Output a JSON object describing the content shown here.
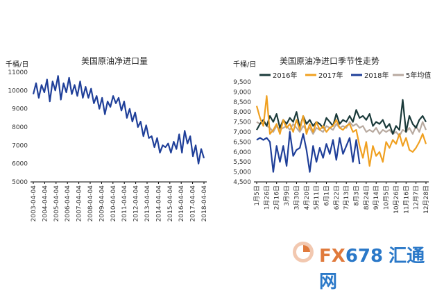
{
  "watermark": {
    "fx": "FX",
    "num": "678",
    "cn": "汇通网"
  },
  "chart_data": [
    {
      "type": "line",
      "title": "美国原油净进口量",
      "unit": "千桶/日",
      "ylim": [
        5000,
        11000
      ],
      "yticks": [
        5000,
        6000,
        7000,
        8000,
        9000,
        10000,
        11000
      ],
      "x_tick_labels": [
        "2003-04-04",
        "2004-04-04",
        "2005-04-04",
        "2006-04-04",
        "2007-04-04",
        "2008-04-04",
        "2009-04-04",
        "2010-04-04",
        "2011-04-04",
        "2012-04-04",
        "2013-04-04",
        "2014-04-04",
        "2015-04-04",
        "2016-04-04",
        "2017-04-04",
        "2018-04-04"
      ],
      "series": [
        {
          "color": "#1f3f99",
          "x_years": [
            2003.0,
            2003.25,
            2003.5,
            2003.75,
            2004.0,
            2004.25,
            2004.5,
            2004.75,
            2005.0,
            2005.25,
            2005.5,
            2005.75,
            2006.0,
            2006.25,
            2006.5,
            2006.75,
            2007.0,
            2007.25,
            2007.5,
            2007.75,
            2008.0,
            2008.25,
            2008.5,
            2008.75,
            2009.0,
            2009.25,
            2009.5,
            2009.75,
            2010.0,
            2010.25,
            2010.5,
            2010.75,
            2011.0,
            2011.25,
            2011.5,
            2011.75,
            2012.0,
            2012.25,
            2012.5,
            2012.75,
            2013.0,
            2013.25,
            2013.5,
            2013.75,
            2014.0,
            2014.25,
            2014.5,
            2014.75,
            2015.0,
            2015.25,
            2015.5,
            2015.75,
            2016.0,
            2016.25,
            2016.5,
            2016.75,
            2017.0,
            2017.25,
            2017.5,
            2017.75,
            2018.0,
            2018.25,
            2018.5
          ],
          "values": [
            9800,
            10400,
            9600,
            10300,
            9900,
            10600,
            9400,
            10500,
            10000,
            10800,
            9500,
            10400,
            9900,
            10700,
            9800,
            10300,
            9700,
            10500,
            9600,
            10200,
            9600,
            10100,
            9300,
            9700,
            9000,
            9600,
            8700,
            9400,
            9100,
            9700,
            9300,
            9600,
            8900,
            9400,
            8500,
            9000,
            8300,
            8800,
            8000,
            8300,
            7500,
            8100,
            7400,
            7500,
            6900,
            7400,
            6600,
            7000,
            6900,
            7100,
            6600,
            7200,
            6800,
            7600,
            6600,
            7800,
            7100,
            7500,
            6400,
            7000,
            6000,
            6800,
            6300
          ]
        }
      ]
    },
    {
      "type": "line",
      "title": "美国原油净进口季节性走势",
      "unit": "千桶/日",
      "ylim": [
        4500,
        9500
      ],
      "yticks": [
        4500,
        5000,
        5500,
        6000,
        6500,
        7000,
        7500,
        8000,
        8500,
        9000,
        9500
      ],
      "ytick_labels": [
        "4,500",
        "5,000",
        "5,500",
        "6,000",
        "6,500",
        "7,000",
        "7,500",
        "8,000",
        "8,500",
        "9,000",
        "9,500"
      ],
      "x_tick_labels": [
        "1月5日",
        "1月26日",
        "2月16日",
        "3月9日",
        "3月30日",
        "4月20日",
        "5月11日",
        "6月1日",
        "6月22日",
        "7月13日",
        "8月3日",
        "8月24日",
        "9月14日",
        "10月5日",
        "10月26日",
        "11月16日",
        "12月7日",
        "12月28日"
      ],
      "series": [
        {
          "name": "2016年",
          "color": "#1a3a3a",
          "values": [
            7100,
            7400,
            7600,
            7300,
            7800,
            7500,
            7900,
            7200,
            7600,
            7400,
            7700,
            7500,
            8000,
            7200,
            7800,
            7400,
            7600,
            7300,
            7500,
            7400,
            7200,
            7700,
            7500,
            7300,
            7900,
            7400,
            7600,
            7500,
            7800,
            7500,
            8100,
            7700,
            7800,
            7600,
            7900,
            7300,
            7500,
            7400,
            7600,
            7200,
            7400,
            6900,
            7300,
            7100,
            8600,
            7000,
            7800,
            7400,
            7200,
            7600,
            7800,
            7500
          ]
        },
        {
          "name": "2017年",
          "color": "#f0a020",
          "values": [
            8300,
            7700,
            7300,
            8800,
            6900,
            7100,
            7400,
            6900,
            7600,
            7200,
            7400,
            7000,
            7600,
            7100,
            7800,
            6900,
            7400,
            7000,
            7500,
            7100,
            7300,
            7000,
            7200,
            7300,
            7600,
            7200,
            7100,
            7300,
            7400,
            7000,
            7100,
            6300,
            5700,
            6500,
            5300,
            6300,
            5800,
            6000,
            5500,
            6500,
            6200,
            6600,
            6400,
            6900,
            6300,
            6700,
            6100,
            6000,
            6200,
            6500,
            6900,
            6400
          ]
        },
        {
          "name": "2018年",
          "color": "#1f3f99",
          "values": [
            6600,
            6700,
            6600,
            6700,
            6500,
            5000,
            6300,
            5500,
            6300,
            5300,
            7000,
            5800,
            6100,
            6200,
            6900,
            6100,
            5000,
            6300,
            5500,
            6200,
            5700,
            6400,
            5900,
            6600,
            5600,
            6700,
            5900,
            6300,
            6700,
            5500,
            6600,
            5400
          ]
        },
        {
          "name": "5年均值",
          "color": "#b8aaa0",
          "values": [
            7500,
            7400,
            7600,
            7300,
            7200,
            7000,
            7300,
            7100,
            7200,
            7300,
            7100,
            7400,
            7200,
            7000,
            7300,
            7100,
            7200,
            6900,
            7200,
            7100,
            7000,
            7300,
            7200,
            7100,
            7400,
            7200,
            7300,
            7200,
            7500,
            7300,
            7400,
            7200,
            7300,
            7000,
            7100,
            7000,
            7200,
            6900,
            7100,
            7000,
            7100,
            6900,
            7000,
            6800,
            7100,
            7000,
            7200,
            6900,
            7300,
            7000,
            7500,
            7100
          ]
        }
      ]
    }
  ]
}
